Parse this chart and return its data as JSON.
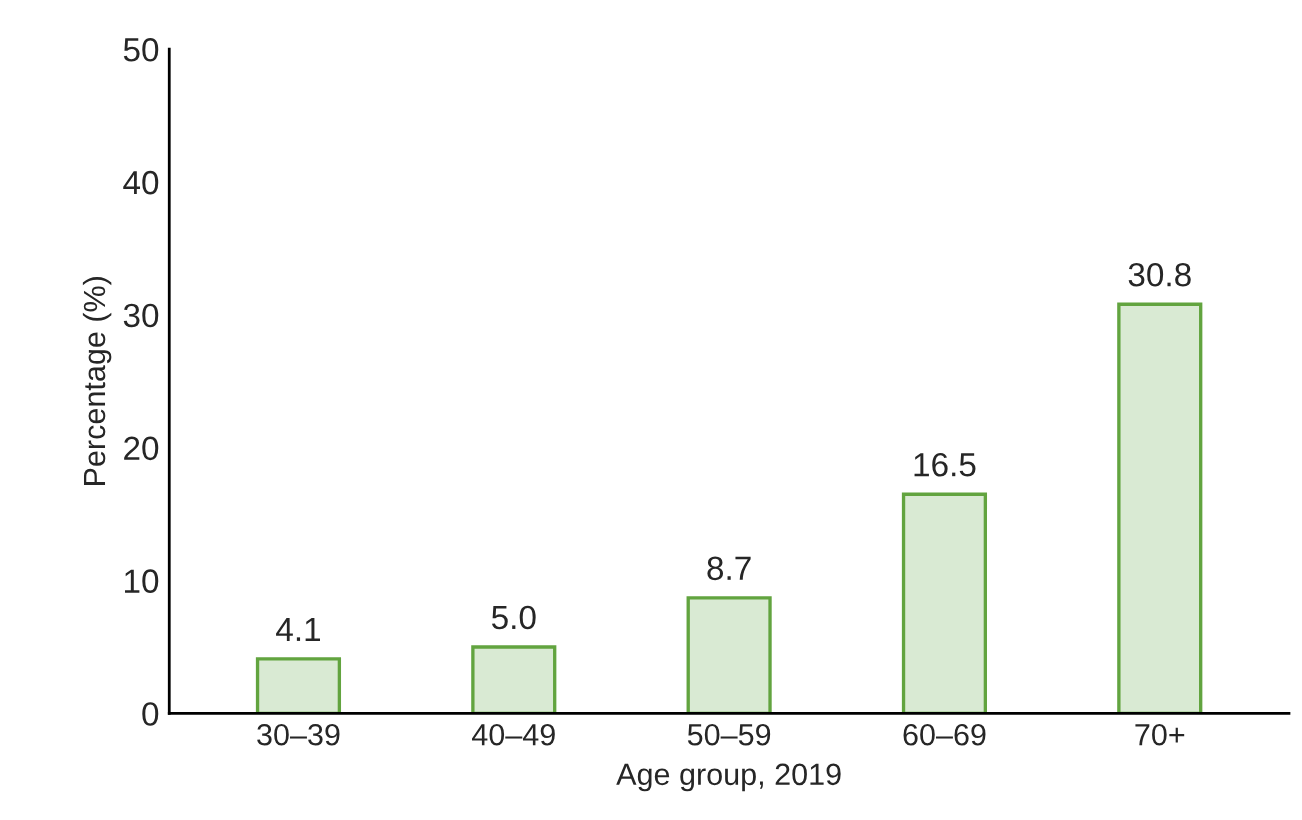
{
  "chart_data": {
    "type": "bar",
    "xlabel": "Age group, 2019",
    "ylabel": "Percentage (%)",
    "categories": [
      "30–39",
      "40–49",
      "50–59",
      "60–69",
      "70+"
    ],
    "values": [
      4.1,
      5.0,
      8.7,
      16.5,
      30.8
    ],
    "color": "#d9ead3",
    "ylim": [
      0,
      50
    ],
    "yticks": [
      0,
      10,
      20,
      30,
      40,
      50
    ],
    "value_labels": [
      "4.1",
      "5.0",
      "8.7",
      "16.5",
      "30.8"
    ],
    "grid": false,
    "legend": false
  }
}
